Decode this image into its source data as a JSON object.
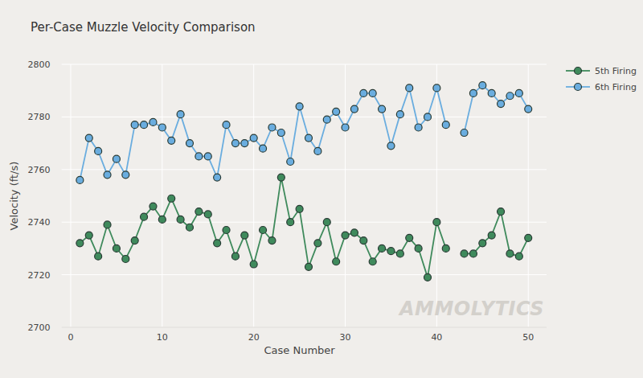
{
  "chart_data": {
    "type": "line",
    "title": "Per-Case Muzzle Velocity Comparison",
    "x_label": "Case Number",
    "y_label": "Velocity (ft/s)",
    "annotations": [
      "AMMOLYTICS"
    ],
    "x": [
      1,
      2,
      3,
      4,
      5,
      6,
      7,
      8,
      9,
      10,
      11,
      12,
      13,
      14,
      15,
      16,
      17,
      18,
      19,
      20,
      21,
      22,
      23,
      24,
      25,
      26,
      27,
      28,
      29,
      30,
      31,
      32,
      33,
      34,
      35,
      36,
      37,
      38,
      39,
      40,
      41,
      42,
      43,
      44,
      45,
      46,
      47,
      48,
      49,
      50
    ],
    "series": [
      {
        "name": "5th Firing",
        "color": "#3f8a5c",
        "marker": "circle",
        "line_style": "solid",
        "values": [
          2732,
          2735,
          2727,
          2739,
          2730,
          2726,
          2733,
          2742,
          2746,
          2741,
          2749,
          2741,
          2738,
          2744,
          2743,
          2732,
          2737,
          2727,
          2735,
          2724,
          2737,
          2733,
          2757,
          2740,
          2745,
          2723,
          2732,
          2740,
          2725,
          2735,
          2736,
          2733,
          2725,
          2730,
          2729,
          2728,
          2734,
          2730,
          2719,
          2740,
          2730,
          null,
          2728,
          2728,
          2732,
          2735,
          2744,
          2728,
          2727,
          2734
        ]
      },
      {
        "name": "6th Firing",
        "color": "#6aaddf",
        "marker": "circle",
        "line_style": "solid",
        "values": [
          2756,
          2772,
          2767,
          2758,
          2764,
          2758,
          2777,
          2777,
          2778,
          2776,
          2771,
          2781,
          2770,
          2765,
          2765,
          2757,
          2777,
          2770,
          2770,
          2772,
          2768,
          2776,
          2774,
          2763,
          2784,
          2772,
          2767,
          2779,
          2782,
          2776,
          2783,
          2789,
          2789,
          2783,
          2769,
          2781,
          2791,
          2776,
          2780,
          2791,
          2777,
          null,
          2774,
          2789,
          2792,
          2789,
          2785,
          2788,
          2789,
          2783
        ]
      }
    ],
    "xlim": [
      -1,
      52
    ],
    "xticks": [
      0,
      10,
      20,
      30,
      40,
      50
    ],
    "ylim": [
      2700,
      2800
    ],
    "yticks": [
      2700,
      2720,
      2740,
      2760,
      2780,
      2800
    ],
    "grid": true,
    "legend": "top-right"
  }
}
